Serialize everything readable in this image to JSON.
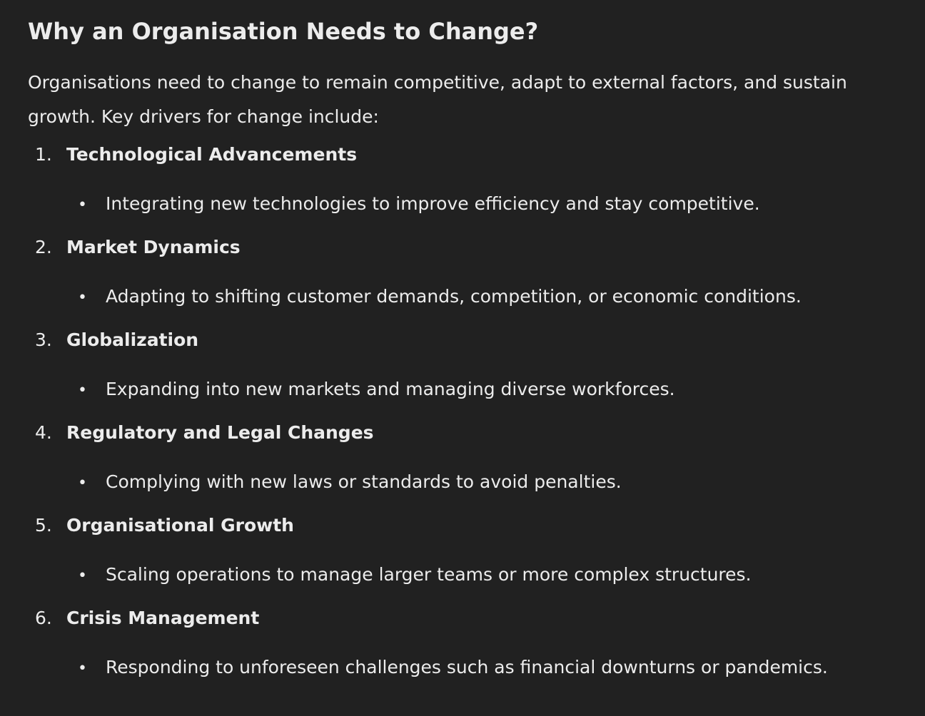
{
  "title": "Why an Organisation Needs to Change?",
  "intro": "Organisations need to change to remain competitive, adapt to external factors, and sustain growth. Key drivers for change include:",
  "bullet_glyph": "•",
  "drivers": [
    {
      "number": "1.",
      "title": "Technological Advancements",
      "detail": "Integrating new technologies to improve efficiency and stay competitive."
    },
    {
      "number": "2.",
      "title": "Market Dynamics",
      "detail": "Adapting to shifting customer demands, competition, or economic conditions."
    },
    {
      "number": "3.",
      "title": "Globalization",
      "detail": "Expanding into new markets and managing diverse workforces."
    },
    {
      "number": "4.",
      "title": "Regulatory and Legal Changes",
      "detail": "Complying with new laws or standards to avoid penalties."
    },
    {
      "number": "5.",
      "title": "Organisational Growth",
      "detail": "Scaling operations to manage larger teams or more complex structures."
    },
    {
      "number": "6.",
      "title": "Crisis Management",
      "detail": "Responding to unforeseen challenges such as financial downturns or pandemics."
    }
  ]
}
